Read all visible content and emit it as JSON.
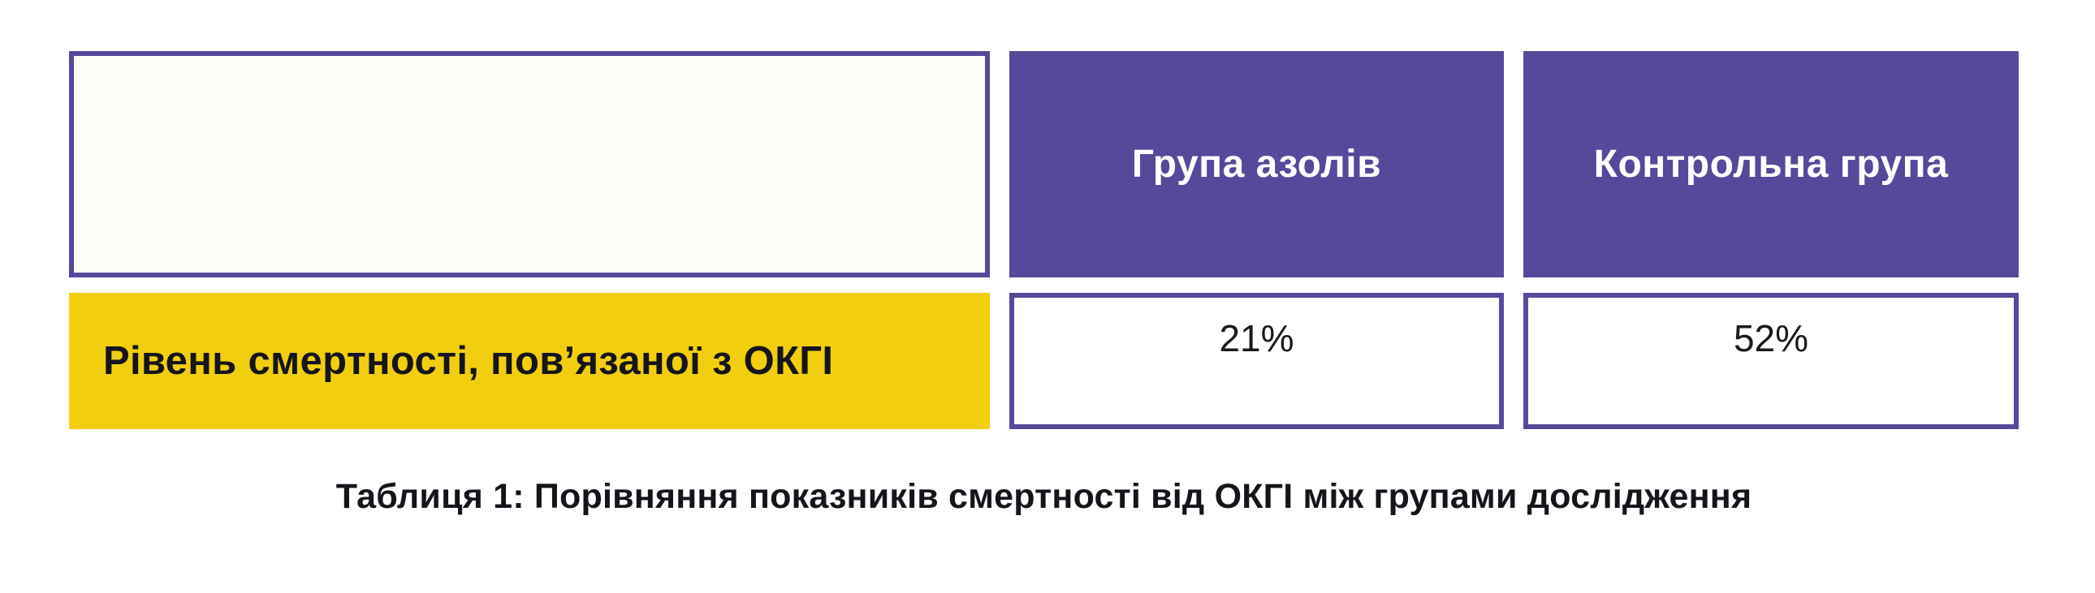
{
  "table": {
    "header": {
      "corner": "",
      "col1": "Група азолів",
      "col2": "Контрольна група"
    },
    "row": {
      "label": "Рівень смертності, пов’язаної з ОКГІ",
      "col1": "21%",
      "col2": "52%"
    },
    "caption": "Таблиця 1: Порівняння показників смертності від ОКГІ між групами дослідження"
  },
  "colors": {
    "header_fill": "#55499B",
    "cell_border": "#54499D",
    "row_label_fill": "#F1CF0E",
    "header_text": "#FFFFFF",
    "dark_text": "#15151B",
    "background": "#FFFFFF"
  },
  "chart_data": {
    "type": "table",
    "title": "Таблиця 1: Порівняння показників смертності від ОКГІ між групами дослідження",
    "columns": [
      "",
      "Група азолів",
      "Контрольна група"
    ],
    "rows": [
      [
        "Рівень смертності, пов’язаної з ОКГІ",
        "21%",
        "52%"
      ]
    ],
    "values_percent": {
      "azole_group": 21,
      "control_group": 52
    },
    "legend_position": "none",
    "grid": false
  }
}
